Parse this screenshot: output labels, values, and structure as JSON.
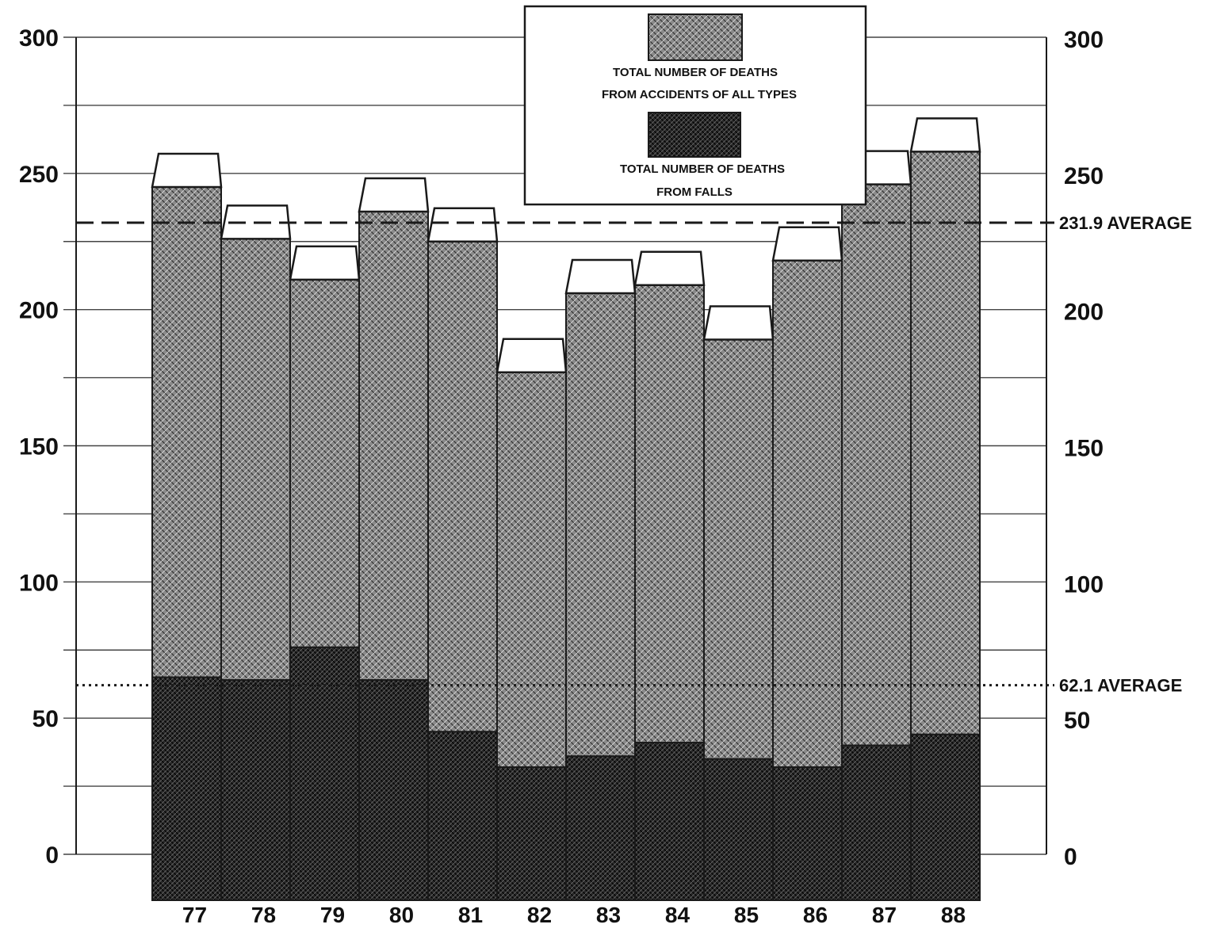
{
  "chart_data": {
    "type": "bar",
    "categories": [
      "77",
      "78",
      "79",
      "80",
      "81",
      "82",
      "83",
      "84",
      "85",
      "86",
      "87",
      "88"
    ],
    "series": [
      {
        "name": "TOTAL NUMBER OF DEATHS FROM ACCIDENTS OF ALL TYPES",
        "values": [
          245,
          226,
          211,
          236,
          225,
          177,
          206,
          209,
          189,
          218,
          246,
          258
        ]
      },
      {
        "name": "TOTAL NUMBER OF DEATHS FROM FALLS",
        "values": [
          65,
          64,
          76,
          64,
          45,
          32,
          36,
          41,
          35,
          32,
          40,
          44
        ]
      }
    ],
    "legend": {
      "position": "top-center",
      "entries": [
        {
          "lines": [
            "TOTAL NUMBER OF DEATHS",
            "FROM ACCIDENTS OF ALL TYPES"
          ]
        },
        {
          "lines": [
            "TOTAL NUMBER OF DEATHS",
            "FROM FALLS"
          ]
        }
      ]
    },
    "yticks_left": [
      "0",
      "50",
      "100",
      "150",
      "200",
      "250",
      "300"
    ],
    "yticks_right": [
      "0",
      "50",
      "100",
      "150",
      "200",
      "250",
      "300"
    ],
    "ylim": [
      0,
      300
    ],
    "grid": true,
    "averages": [
      {
        "label": "231.9 AVERAGE",
        "value": 231.9,
        "style": "dashed"
      },
      {
        "label": "62.1 AVERAGE",
        "value": 62.1,
        "style": "dotted"
      }
    ],
    "title": "",
    "xlabel": "",
    "ylabel": ""
  },
  "colors": {
    "ink": "#1a1a1a",
    "all_accidents_fill": "#7d7d7d",
    "falls_fill": "#262626",
    "background": "#ffffff"
  }
}
